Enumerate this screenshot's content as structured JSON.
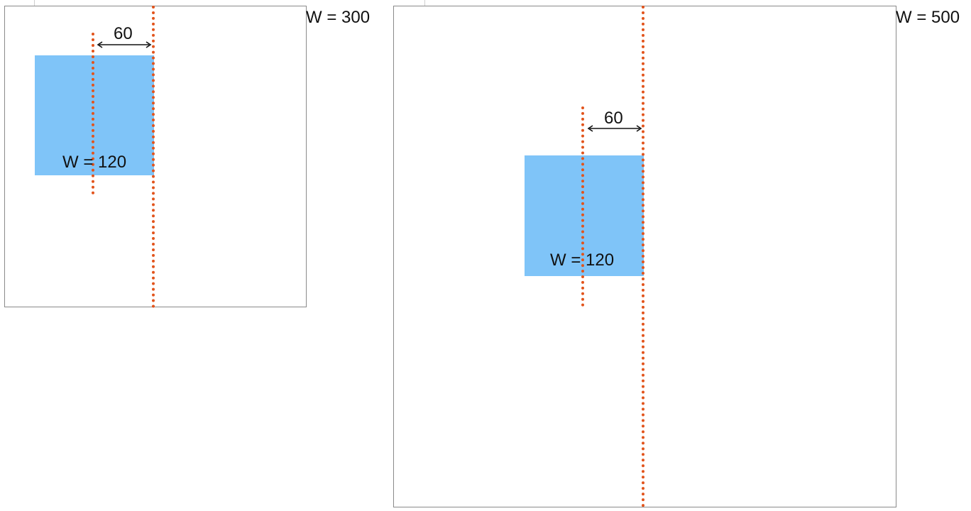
{
  "colors": {
    "frame_border": "#8a8a8a",
    "box_fill": "#7fc4f8",
    "guide_line": "#e2541c",
    "arrow": "#111111"
  },
  "diagrams": [
    {
      "container_label": "W = 300",
      "box_label": "W = 120",
      "offset_label": "60"
    },
    {
      "container_label": "W = 500",
      "box_label": "W = 120",
      "offset_label": "60"
    }
  ]
}
